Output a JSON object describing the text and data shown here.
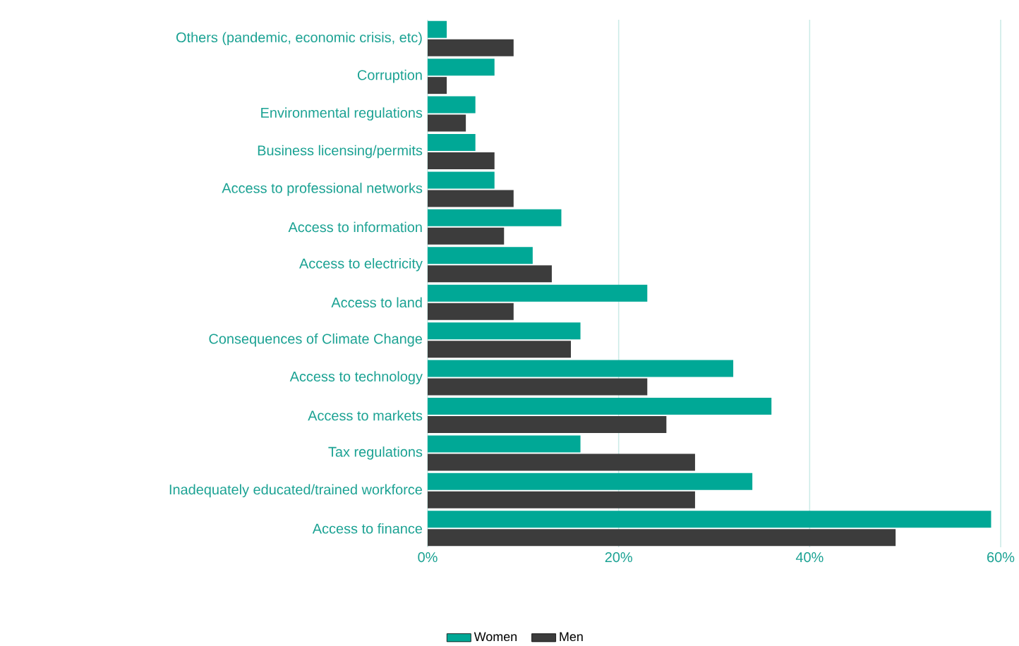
{
  "chart_data": {
    "type": "bar",
    "orientation": "horizontal",
    "categories": [
      "Others (pandemic, economic crisis, etc)",
      "Corruption",
      "Environmental regulations",
      "Business licensing/permits",
      "Access to professional networks",
      "Access to information",
      "Access to electricity",
      "Access to land",
      "Consequences of Climate Change",
      "Access to technology",
      "Access to markets",
      "Tax regulations",
      "Inadequately educated/trained workforce",
      "Access to finance"
    ],
    "series": [
      {
        "name": "Women",
        "color": "#00a896",
        "values": [
          2,
          7,
          5,
          5,
          7,
          14,
          11,
          23,
          16,
          32,
          36,
          16,
          34,
          59
        ]
      },
      {
        "name": "Men",
        "color": "#3c3c3c",
        "values": [
          9,
          2,
          4,
          7,
          9,
          8,
          13,
          9,
          15,
          23,
          25,
          28,
          28,
          49
        ]
      }
    ],
    "xlim": [
      0,
      60
    ],
    "xticks": [
      {
        "value": 0,
        "label": "0%"
      },
      {
        "value": 20,
        "label": "20%"
      },
      {
        "value": 40,
        "label": "40%"
      },
      {
        "value": 60,
        "label": "60%"
      }
    ],
    "grid": "x",
    "legend": "bottom"
  }
}
